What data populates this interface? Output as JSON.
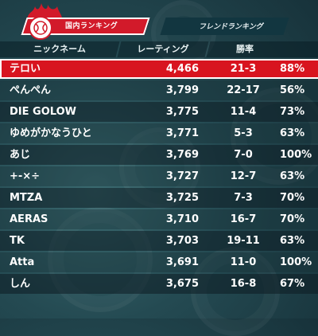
{
  "tabs": {
    "active_label": "国内ランキング",
    "inactive_label": "フレンドランキング"
  },
  "columns": {
    "name": "ニックネーム",
    "rating": "レーティング",
    "winrate": "勝率"
  },
  "colors": {
    "highlight_red": "#d8141f",
    "tab_red": "#d21a2a",
    "background": "#244a52"
  },
  "rows": [
    {
      "name": "テロい",
      "rating": "4,466",
      "record": "21-3",
      "pct": "88%"
    },
    {
      "name": "ぺんぺん",
      "rating": "3,799",
      "record": "22-17",
      "pct": "56%"
    },
    {
      "name": "DIE GOLOW",
      "rating": "3,775",
      "record": "11-4",
      "pct": "73%"
    },
    {
      "name": "ゆめがかなうひと",
      "rating": "3,771",
      "record": "5-3",
      "pct": "63%"
    },
    {
      "name": "あじ",
      "rating": "3,769",
      "record": "7-0",
      "pct": "100%"
    },
    {
      "name": "+-×÷",
      "rating": "3,727",
      "record": "12-7",
      "pct": "63%"
    },
    {
      "name": "MTZA",
      "rating": "3,725",
      "record": "7-3",
      "pct": "70%"
    },
    {
      "name": "AERAS",
      "rating": "3,710",
      "record": "16-7",
      "pct": "70%"
    },
    {
      "name": "TK",
      "rating": "3,703",
      "record": "19-11",
      "pct": "63%"
    },
    {
      "name": "Atta",
      "rating": "3,691",
      "record": "11-0",
      "pct": "100%"
    },
    {
      "name": "しん",
      "rating": "3,675",
      "record": "16-8",
      "pct": "67%"
    }
  ]
}
